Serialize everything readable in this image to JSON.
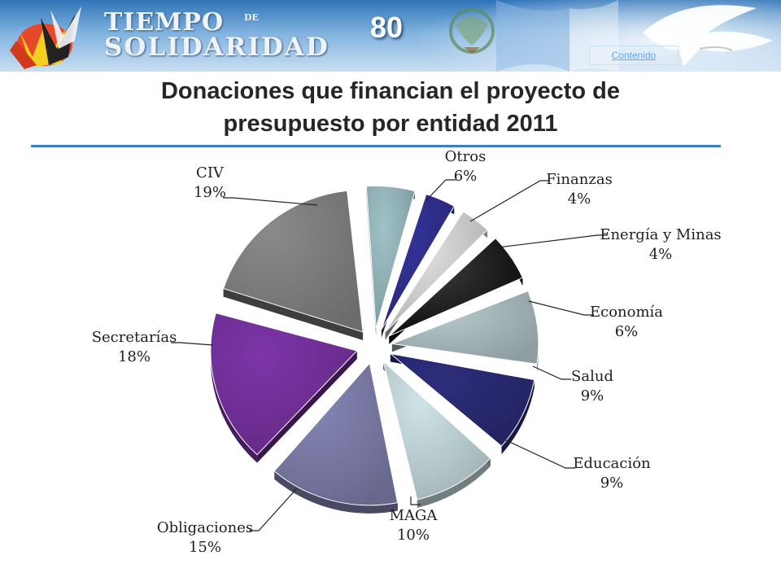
{
  "header": {
    "brand_line1": "TIEMPO",
    "brand_de": "DE",
    "brand_line2": "SOLIDARIDAD",
    "page_number": "80",
    "contenido_link": "Contenido",
    "icons": [
      "hands-logo-icon",
      "coat-of-arms-icon",
      "dove-icon"
    ]
  },
  "title_line1": "Donaciones que financian el proyecto de",
  "title_line2": "presupuesto por entidad 2011",
  "chart_data": {
    "type": "pie",
    "title": "Donaciones que financian el proyecto de presupuesto por entidad 2011",
    "exploded": true,
    "style": "3d",
    "slices": [
      {
        "name": "Otros",
        "value": 6,
        "label": "6%",
        "color": "#9fc3c8"
      },
      {
        "name": "Finanzas",
        "value": 4,
        "label": "4%",
        "color": "#33339a"
      },
      {
        "name": "Energía y Minas",
        "value": 4,
        "label": "4%",
        "color": "#e2e2e2"
      },
      {
        "name": "Economía",
        "value": 6,
        "label": "6%",
        "color": "#0c0c0c"
      },
      {
        "name": "Salud",
        "value": 9,
        "label": "9%",
        "color": "#b6c9cc"
      },
      {
        "name": "Educación",
        "value": 9,
        "label": "9%",
        "color": "#2d2d7c"
      },
      {
        "name": "MAGA",
        "value": 10,
        "label": "10%",
        "color": "#cfe4e8"
      },
      {
        "name": "Obligaciones",
        "value": 15,
        "label": "15%",
        "color": "#8585b5"
      },
      {
        "name": "Secretarías",
        "value": 18,
        "label": "18%",
        "color": "#7d35a8"
      },
      {
        "name": "CIV",
        "value": 19,
        "label": "19%",
        "color": "#8a8a8a"
      }
    ]
  }
}
